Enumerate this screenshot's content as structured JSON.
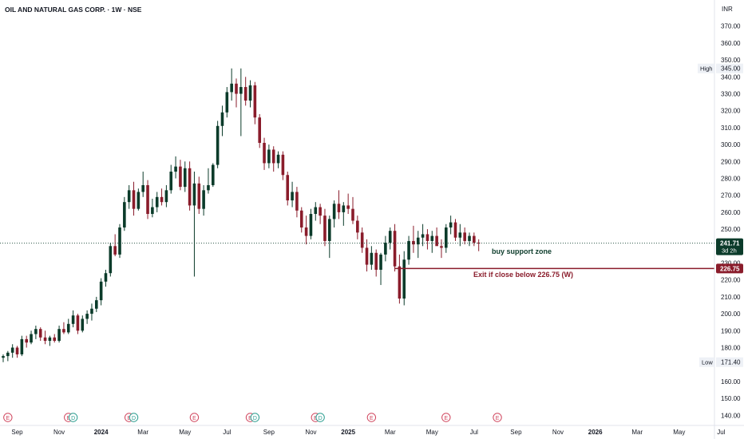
{
  "header": {
    "title": "OIL AND NATURAL GAS CORP. · 1W · NSE"
  },
  "colors": {
    "up": "#0b3b2a",
    "down": "#8a1c2b",
    "axis_text": "#131722",
    "grid_text": "#131722",
    "exit_line": "#8a1c2b",
    "current_price_bg": "#0b3b2a",
    "label_bg": "#eef1f6"
  },
  "chart_data": {
    "type": "candlestick",
    "title": "OIL AND NATURAL GAS CORP. · 1W · NSE",
    "currency": "INR",
    "ylim": [
      134,
      376
    ],
    "y_ticks": [
      140,
      150,
      160,
      170,
      180,
      190,
      200,
      210,
      220,
      230,
      240,
      250,
      260,
      270,
      280,
      290,
      300,
      310,
      320,
      330,
      340,
      350,
      360,
      370
    ],
    "x_ticks": [
      {
        "label": "Sep",
        "week": 3,
        "bold": false
      },
      {
        "label": "Nov",
        "week": 12,
        "bold": false
      },
      {
        "label": "2024",
        "week": 21,
        "bold": true
      },
      {
        "label": "Mar",
        "week": 30,
        "bold": false
      },
      {
        "label": "May",
        "week": 39,
        "bold": false
      },
      {
        "label": "Jul",
        "week": 48,
        "bold": false
      },
      {
        "label": "Sep",
        "week": 57,
        "bold": false
      },
      {
        "label": "Nov",
        "week": 66,
        "bold": false
      },
      {
        "label": "2025",
        "week": 74,
        "bold": true
      },
      {
        "label": "Mar",
        "week": 83,
        "bold": false
      },
      {
        "label": "May",
        "week": 92,
        "bold": false
      },
      {
        "label": "Jul",
        "week": 101,
        "bold": false
      },
      {
        "label": "Sep",
        "week": 110,
        "bold": false
      },
      {
        "label": "Nov",
        "week": 119,
        "bold": false
      },
      {
        "label": "2026",
        "week": 127,
        "bold": true
      },
      {
        "label": "Mar",
        "week": 136,
        "bold": false
      },
      {
        "label": "May",
        "week": 145,
        "bold": false
      },
      {
        "label": "Jul",
        "week": 154,
        "bold": false
      }
    ],
    "high": {
      "label": "High",
      "value": "345.00",
      "y": 345.0
    },
    "low": {
      "label": "Low",
      "value": "171.40",
      "y": 171.4
    },
    "current": {
      "value": "241.71",
      "countdown": "3d 2h",
      "y": 241.71
    },
    "exit_level": {
      "value": "226.75",
      "y": 226.75
    },
    "annotations": [
      {
        "text": "buy support zone"
      },
      {
        "text": "Exit if close below 226.75 (W)"
      }
    ],
    "event_markers": [
      {
        "week": 1,
        "label": "E"
      },
      {
        "week": 14,
        "label": "E"
      },
      {
        "week": 15,
        "label": "D"
      },
      {
        "week": 27,
        "label": "E"
      },
      {
        "week": 28,
        "label": "D"
      },
      {
        "week": 41,
        "label": "E"
      },
      {
        "week": 53,
        "label": "E"
      },
      {
        "week": 54,
        "label": "D"
      },
      {
        "week": 67,
        "label": "E"
      },
      {
        "week": 68,
        "label": "D"
      },
      {
        "week": 79,
        "label": "E"
      },
      {
        "week": 95,
        "label": "E"
      },
      {
        "week": 106,
        "label": "E"
      }
    ],
    "candles": [
      {
        "o": 174,
        "h": 176,
        "l": 171.4,
        "c": 175
      },
      {
        "o": 175,
        "h": 178,
        "l": 172,
        "c": 177
      },
      {
        "o": 177,
        "h": 182,
        "l": 174,
        "c": 180
      },
      {
        "o": 180,
        "h": 181,
        "l": 174,
        "c": 176
      },
      {
        "o": 176,
        "h": 187,
        "l": 175,
        "c": 185
      },
      {
        "o": 185,
        "h": 187,
        "l": 180,
        "c": 183
      },
      {
        "o": 183,
        "h": 190,
        "l": 182,
        "c": 188
      },
      {
        "o": 188,
        "h": 193,
        "l": 185,
        "c": 191
      },
      {
        "o": 191,
        "h": 192,
        "l": 184,
        "c": 186
      },
      {
        "o": 186,
        "h": 190,
        "l": 182,
        "c": 184
      },
      {
        "o": 184,
        "h": 187,
        "l": 181,
        "c": 186
      },
      {
        "o": 186,
        "h": 188,
        "l": 183,
        "c": 184
      },
      {
        "o": 184,
        "h": 193,
        "l": 183,
        "c": 191
      },
      {
        "o": 191,
        "h": 195,
        "l": 188,
        "c": 189
      },
      {
        "o": 189,
        "h": 197,
        "l": 188,
        "c": 194
      },
      {
        "o": 194,
        "h": 202,
        "l": 192,
        "c": 199
      },
      {
        "o": 199,
        "h": 200,
        "l": 188,
        "c": 190
      },
      {
        "o": 190,
        "h": 199,
        "l": 189,
        "c": 197
      },
      {
        "o": 197,
        "h": 202,
        "l": 194,
        "c": 200
      },
      {
        "o": 200,
        "h": 206,
        "l": 196,
        "c": 203
      },
      {
        "o": 203,
        "h": 210,
        "l": 201,
        "c": 208
      },
      {
        "o": 208,
        "h": 221,
        "l": 205,
        "c": 219
      },
      {
        "o": 219,
        "h": 226,
        "l": 216,
        "c": 224
      },
      {
        "o": 224,
        "h": 242,
        "l": 222,
        "c": 240
      },
      {
        "o": 240,
        "h": 247,
        "l": 234,
        "c": 235
      },
      {
        "o": 235,
        "h": 253,
        "l": 233,
        "c": 251
      },
      {
        "o": 251,
        "h": 269,
        "l": 249,
        "c": 266
      },
      {
        "o": 266,
        "h": 276,
        "l": 262,
        "c": 273
      },
      {
        "o": 273,
        "h": 278,
        "l": 258,
        "c": 262
      },
      {
        "o": 262,
        "h": 274,
        "l": 261,
        "c": 272
      },
      {
        "o": 272,
        "h": 284,
        "l": 269,
        "c": 276
      },
      {
        "o": 276,
        "h": 279,
        "l": 256,
        "c": 259
      },
      {
        "o": 259,
        "h": 268,
        "l": 257,
        "c": 263
      },
      {
        "o": 263,
        "h": 272,
        "l": 260,
        "c": 269
      },
      {
        "o": 269,
        "h": 274,
        "l": 264,
        "c": 266
      },
      {
        "o": 266,
        "h": 276,
        "l": 263,
        "c": 273
      },
      {
        "o": 273,
        "h": 288,
        "l": 271,
        "c": 284
      },
      {
        "o": 284,
        "h": 293,
        "l": 280,
        "c": 287
      },
      {
        "o": 287,
        "h": 291,
        "l": 273,
        "c": 275
      },
      {
        "o": 275,
        "h": 290,
        "l": 272,
        "c": 286
      },
      {
        "o": 286,
        "h": 290,
        "l": 261,
        "c": 264
      },
      {
        "o": 264,
        "h": 284,
        "l": 222,
        "c": 277
      },
      {
        "o": 277,
        "h": 281,
        "l": 259,
        "c": 262
      },
      {
        "o": 262,
        "h": 276,
        "l": 258,
        "c": 273
      },
      {
        "o": 273,
        "h": 286,
        "l": 271,
        "c": 276
      },
      {
        "o": 276,
        "h": 289,
        "l": 275,
        "c": 288
      },
      {
        "o": 288,
        "h": 314,
        "l": 286,
        "c": 311
      },
      {
        "o": 311,
        "h": 323,
        "l": 305,
        "c": 319
      },
      {
        "o": 319,
        "h": 334,
        "l": 316,
        "c": 331
      },
      {
        "o": 331,
        "h": 345,
        "l": 326,
        "c": 336
      },
      {
        "o": 336,
        "h": 339,
        "l": 322,
        "c": 330
      },
      {
        "o": 330,
        "h": 345,
        "l": 305,
        "c": 334
      },
      {
        "o": 334,
        "h": 340,
        "l": 323,
        "c": 326
      },
      {
        "o": 326,
        "h": 338,
        "l": 322,
        "c": 335
      },
      {
        "o": 335,
        "h": 337,
        "l": 312,
        "c": 316
      },
      {
        "o": 316,
        "h": 318,
        "l": 298,
        "c": 301
      },
      {
        "o": 301,
        "h": 304,
        "l": 285,
        "c": 289
      },
      {
        "o": 289,
        "h": 300,
        "l": 286,
        "c": 297
      },
      {
        "o": 297,
        "h": 299,
        "l": 284,
        "c": 289
      },
      {
        "o": 289,
        "h": 296,
        "l": 286,
        "c": 294
      },
      {
        "o": 294,
        "h": 296,
        "l": 279,
        "c": 282
      },
      {
        "o": 282,
        "h": 284,
        "l": 264,
        "c": 267
      },
      {
        "o": 267,
        "h": 278,
        "l": 263,
        "c": 272
      },
      {
        "o": 272,
        "h": 275,
        "l": 257,
        "c": 261
      },
      {
        "o": 261,
        "h": 263,
        "l": 248,
        "c": 251
      },
      {
        "o": 251,
        "h": 258,
        "l": 241,
        "c": 246
      },
      {
        "o": 246,
        "h": 262,
        "l": 244,
        "c": 259
      },
      {
        "o": 259,
        "h": 266,
        "l": 255,
        "c": 263
      },
      {
        "o": 263,
        "h": 265,
        "l": 253,
        "c": 258
      },
      {
        "o": 258,
        "h": 262,
        "l": 240,
        "c": 243
      },
      {
        "o": 243,
        "h": 258,
        "l": 233,
        "c": 256
      },
      {
        "o": 256,
        "h": 267,
        "l": 251,
        "c": 265
      },
      {
        "o": 265,
        "h": 273,
        "l": 256,
        "c": 260
      },
      {
        "o": 260,
        "h": 266,
        "l": 252,
        "c": 264
      },
      {
        "o": 264,
        "h": 271,
        "l": 259,
        "c": 262
      },
      {
        "o": 262,
        "h": 269,
        "l": 253,
        "c": 255
      },
      {
        "o": 255,
        "h": 258,
        "l": 244,
        "c": 248
      },
      {
        "o": 248,
        "h": 251,
        "l": 236,
        "c": 239
      },
      {
        "o": 239,
        "h": 244,
        "l": 225,
        "c": 229
      },
      {
        "o": 229,
        "h": 240,
        "l": 226,
        "c": 236
      },
      {
        "o": 236,
        "h": 238,
        "l": 222,
        "c": 226
      },
      {
        "o": 226,
        "h": 236,
        "l": 217,
        "c": 235
      },
      {
        "o": 235,
        "h": 246,
        "l": 231,
        "c": 242
      },
      {
        "o": 242,
        "h": 251,
        "l": 238,
        "c": 249
      },
      {
        "o": 249,
        "h": 253,
        "l": 225,
        "c": 228
      },
      {
        "o": 228,
        "h": 235,
        "l": 206,
        "c": 209
      },
      {
        "o": 209,
        "h": 237,
        "l": 205,
        "c": 232
      },
      {
        "o": 232,
        "h": 246,
        "l": 229,
        "c": 243
      },
      {
        "o": 243,
        "h": 252,
        "l": 236,
        "c": 241
      },
      {
        "o": 241,
        "h": 249,
        "l": 233,
        "c": 245
      },
      {
        "o": 245,
        "h": 253,
        "l": 240,
        "c": 247
      },
      {
        "o": 247,
        "h": 250,
        "l": 238,
        "c": 243
      },
      {
        "o": 243,
        "h": 249,
        "l": 236,
        "c": 246
      },
      {
        "o": 246,
        "h": 251,
        "l": 241,
        "c": 240
      },
      {
        "o": 240,
        "h": 244,
        "l": 233,
        "c": 239
      },
      {
        "o": 239,
        "h": 253,
        "l": 236,
        "c": 251
      },
      {
        "o": 251,
        "h": 258,
        "l": 247,
        "c": 254
      },
      {
        "o": 254,
        "h": 256,
        "l": 243,
        "c": 245
      },
      {
        "o": 245,
        "h": 253,
        "l": 240,
        "c": 248
      },
      {
        "o": 248,
        "h": 251,
        "l": 241,
        "c": 243
      },
      {
        "o": 243,
        "h": 248,
        "l": 240,
        "c": 246
      },
      {
        "o": 246,
        "h": 248,
        "l": 240,
        "c": 242
      },
      {
        "o": 242,
        "h": 244,
        "l": 237,
        "c": 241.71
      }
    ]
  }
}
